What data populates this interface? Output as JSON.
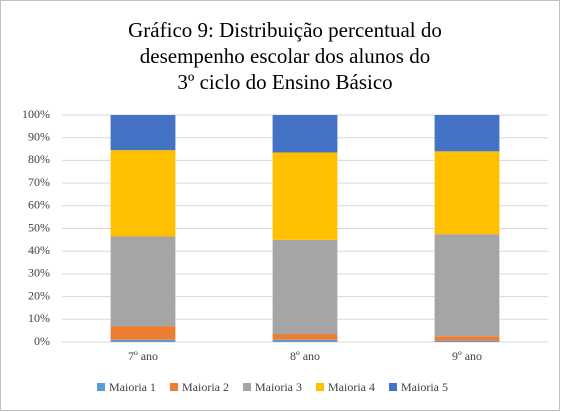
{
  "chart_data": {
    "type": "stacked_bar",
    "title": [
      "Gráfico 9: Distribuição percentual do",
      "desempenho escolar dos alunos do",
      "3º ciclo do Ensino Básico"
    ],
    "categories": [
      "7º ano",
      "8º ano",
      "9º ano"
    ],
    "series": [
      {
        "name": "Maioria 1",
        "color": "#5b9bd5",
        "values": [
          1,
          1,
          0.5
        ]
      },
      {
        "name": "Maioria 2",
        "color": "#ed7d31",
        "values": [
          6,
          2.5,
          2
        ]
      },
      {
        "name": "Maioria 3",
        "color": "#a5a5a5",
        "values": [
          39.5,
          41.5,
          45
        ]
      },
      {
        "name": "Maioria 4",
        "color": "#ffc000",
        "values": [
          38,
          38.5,
          36.5
        ]
      },
      {
        "name": "Maioria 5",
        "color": "#4472c4",
        "values": [
          15.5,
          16.5,
          16
        ]
      }
    ],
    "ylim": [
      0,
      100
    ],
    "yticks": [
      {
        "value": 0,
        "label": "0%"
      },
      {
        "value": 10,
        "label": "10%"
      },
      {
        "value": 20,
        "label": "20%"
      },
      {
        "value": 30,
        "label": "30%"
      },
      {
        "value": 40,
        "label": "40%"
      },
      {
        "value": 50,
        "label": "50%"
      },
      {
        "value": 60,
        "label": "60%"
      },
      {
        "value": 70,
        "label": "70%"
      },
      {
        "value": 80,
        "label": "80%"
      },
      {
        "value": 90,
        "label": "90%"
      },
      {
        "value": 100,
        "label": "100%"
      }
    ],
    "grid": true,
    "legend": "bottom"
  }
}
